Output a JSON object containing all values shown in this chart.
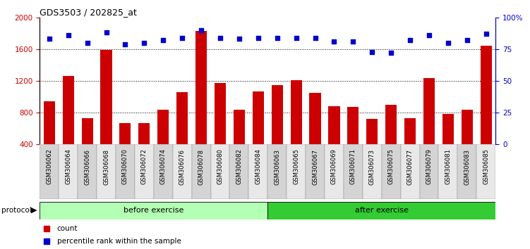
{
  "title": "GDS3503 / 202825_at",
  "samples": [
    "GSM306062",
    "GSM306064",
    "GSM306066",
    "GSM306068",
    "GSM306070",
    "GSM306072",
    "GSM306074",
    "GSM306076",
    "GSM306078",
    "GSM306080",
    "GSM306082",
    "GSM306084",
    "GSM306063",
    "GSM306065",
    "GSM306067",
    "GSM306069",
    "GSM306071",
    "GSM306073",
    "GSM306075",
    "GSM306077",
    "GSM306079",
    "GSM306081",
    "GSM306083",
    "GSM306085"
  ],
  "counts": [
    940,
    1260,
    730,
    1590,
    670,
    670,
    840,
    1060,
    1830,
    1175,
    840,
    1070,
    1150,
    1210,
    1050,
    880,
    870,
    720,
    900,
    730,
    1240,
    780,
    840,
    1640
  ],
  "percentile": [
    83,
    86,
    80,
    88,
    79,
    80,
    82,
    84,
    90,
    84,
    83,
    84,
    84,
    84,
    84,
    81,
    81,
    73,
    72,
    82,
    86,
    80,
    82,
    87
  ],
  "n_before": 12,
  "n_after": 12,
  "bar_color": "#cc0000",
  "dot_color": "#0000cc",
  "before_color": "#b3ffb3",
  "after_color": "#33cc33",
  "ylim_left": [
    400,
    2000
  ],
  "ylim_right": [
    0,
    100
  ],
  "yticks_left": [
    400,
    800,
    1200,
    1600,
    2000
  ],
  "yticks_right": [
    0,
    25,
    50,
    75,
    100
  ],
  "grid_values": [
    800,
    1200,
    1600
  ],
  "protocol_label": "protocol",
  "before_label": "before exercise",
  "after_label": "after exercise",
  "legend_count": "count",
  "legend_pct": "percentile rank within the sample"
}
